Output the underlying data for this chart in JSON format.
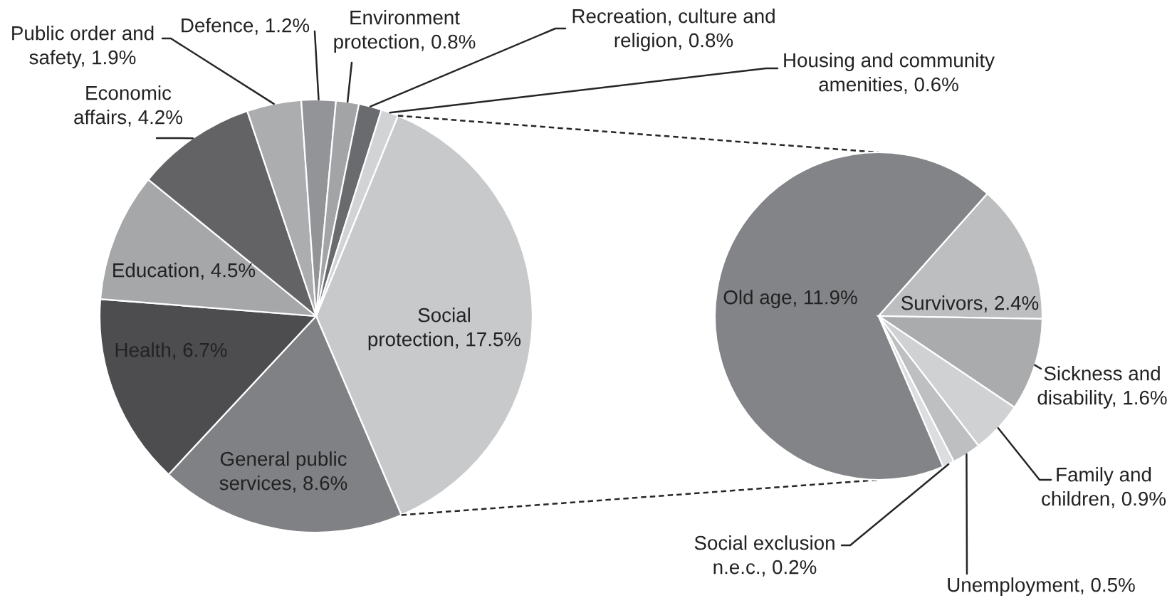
{
  "chart_data": [
    {
      "type": "pie",
      "categories": [
        "Social protection",
        "General public services",
        "Health",
        "Education",
        "Economic affairs",
        "Public order and safety",
        "Defence",
        "Environment protection",
        "Recreation, culture and religion",
        "Housing and community amenities"
      ],
      "values": [
        17.5,
        8.6,
        6.7,
        4.5,
        4.2,
        1.9,
        1.2,
        0.8,
        0.8,
        0.6
      ],
      "colors": [
        "#c8c9cb",
        "#808184",
        "#4d4d50",
        "#a6a7a9",
        "#636366",
        "#acadaf",
        "#939497",
        "#a3a4a6",
        "#6a6b6e",
        "#d2d3d5"
      ],
      "value_labels": [
        "17.5%",
        "8.6%",
        "6.7%",
        "4.5%",
        "4.2%",
        "1.9%",
        "1.2%",
        "0.8%",
        "0.8%",
        "0.6%"
      ]
    },
    {
      "type": "pie",
      "categories": [
        "Old age",
        "Survivors",
        "Sickness and disability",
        "Family and children",
        "Unemployment",
        "Social exclusion n.e.c."
      ],
      "values": [
        11.9,
        2.4,
        1.6,
        0.9,
        0.5,
        0.2
      ],
      "colors": [
        "#838488",
        "#bdbec0",
        "#aaabad",
        "#d0d1d3",
        "#bebfc1",
        "#dcdddf"
      ],
      "value_labels": [
        "11.9%",
        "2.4%",
        "1.6%",
        "0.9%",
        "0.5%",
        "0.2%"
      ]
    }
  ]
}
